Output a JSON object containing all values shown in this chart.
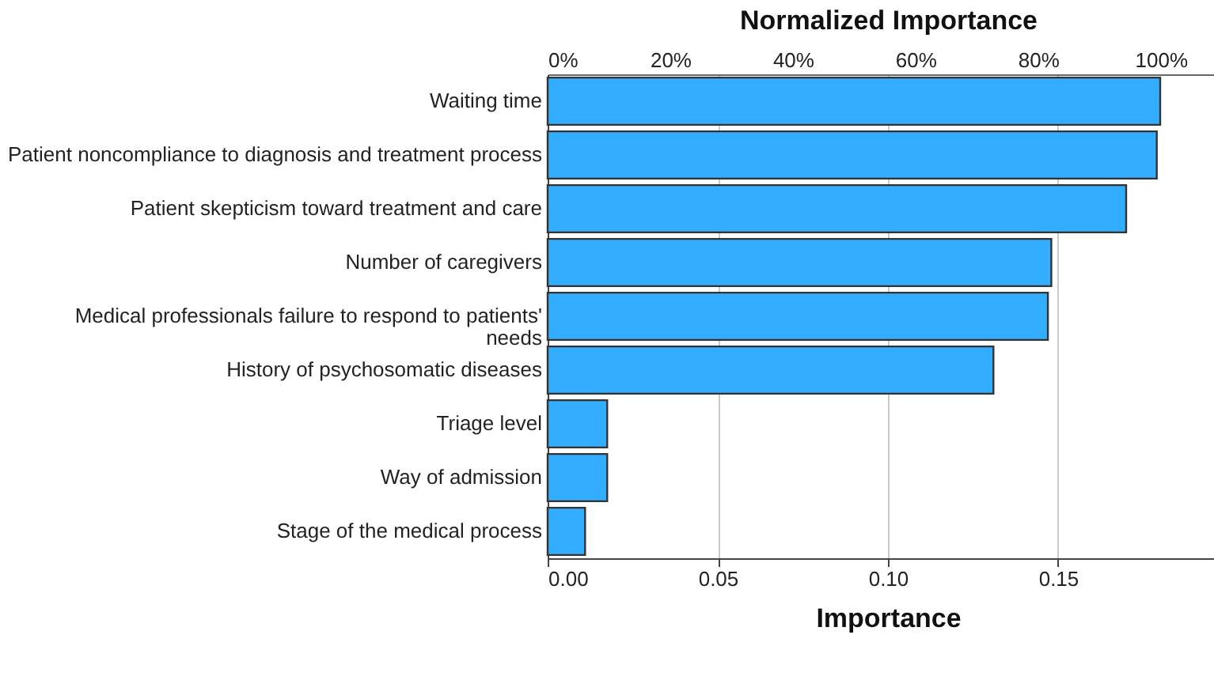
{
  "chart_data": {
    "type": "bar",
    "orientation": "horizontal",
    "xlabel": "Importance",
    "x2label": "Normalized Importance",
    "categories": [
      "Waiting time",
      "Patient noncompliance to diagnosis and treatment process",
      "Patient skepticism toward treatment and care",
      "Number of caregivers",
      "Medical professionals failure to respond to patients' needs",
      "History of psychosomatic diseases",
      "Triage level",
      "Way of admission",
      "Stage of the medical process"
    ],
    "values": [
      0.18,
      0.179,
      0.17,
      0.148,
      0.147,
      0.131,
      0.0175,
      0.0175,
      0.011
    ],
    "color": "#33adff",
    "xlim": [
      0,
      0.2
    ],
    "xticks": [
      {
        "value": 0,
        "label": "0.00"
      },
      {
        "value": 0.05,
        "label": "0.05"
      },
      {
        "value": 0.1,
        "label": "0.10"
      },
      {
        "value": 0.15,
        "label": "0.15"
      }
    ],
    "x2lim": [
      0,
      111
    ],
    "x2ticks": [
      {
        "value": 0,
        "label": "0%"
      },
      {
        "value": 20,
        "label": "20%"
      },
      {
        "value": 40,
        "label": "40%"
      },
      {
        "value": 60,
        "label": "60%"
      },
      {
        "value": 80,
        "label": "80%"
      },
      {
        "value": 100,
        "label": "100%"
      }
    ],
    "grid": "x"
  }
}
